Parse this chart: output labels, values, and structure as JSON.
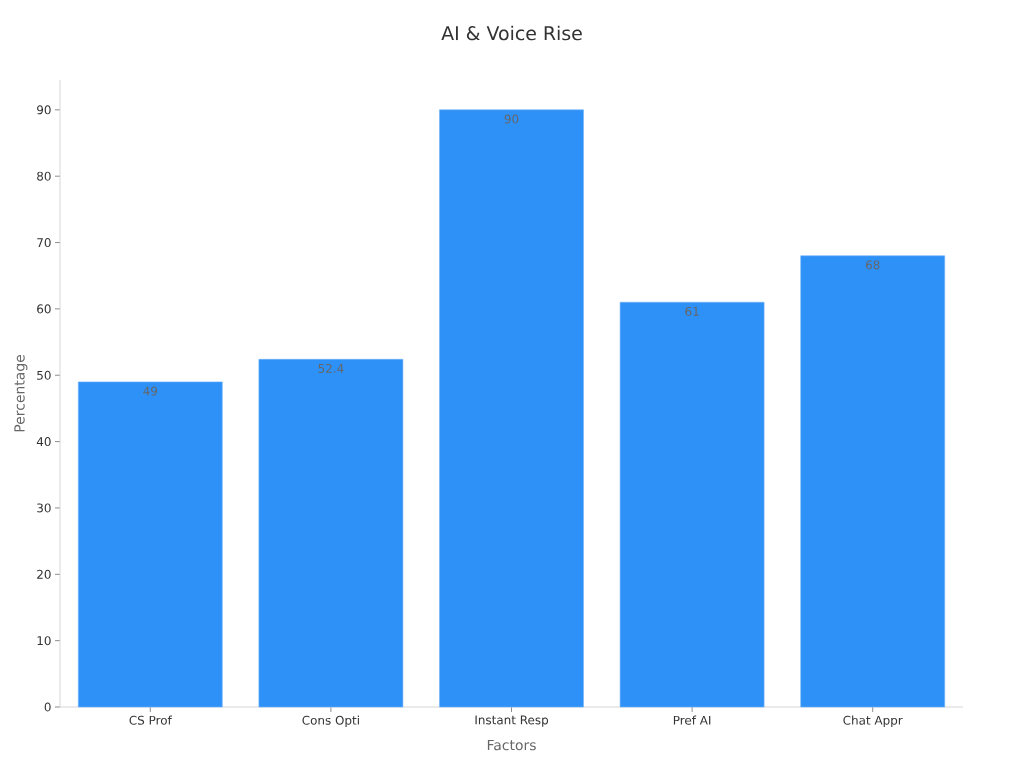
{
  "chart_data": {
    "type": "bar",
    "title": "AI & Voice Rise",
    "xlabel": "Factors",
    "ylabel": "Percentage",
    "categories": [
      "CS Prof",
      "Cons Opti",
      "Instant Resp",
      "Pref AI",
      "Chat Appr"
    ],
    "values": [
      49,
      52.4,
      90,
      61,
      68
    ],
    "color": "#2e91f8",
    "ylim": [
      0,
      94.5
    ],
    "yticks": [
      0,
      10,
      20,
      30,
      40,
      50,
      60,
      70,
      80,
      90
    ],
    "data_labels": true
  }
}
